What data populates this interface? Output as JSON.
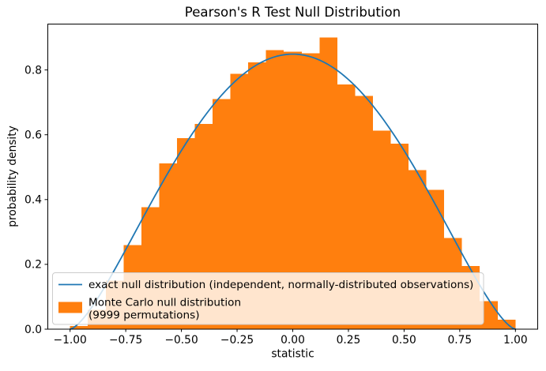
{
  "chart_data": {
    "type": "histogram+line",
    "title": "Pearson's R Test Null Distribution",
    "xlabel": "statistic",
    "ylabel": "probability density",
    "xlim": [
      -1.1,
      1.1
    ],
    "ylim": [
      0,
      0.9416
    ],
    "grid": false,
    "x_ticks": {
      "values": [
        -1.0,
        -0.75,
        -0.5,
        -0.25,
        0.0,
        0.25,
        0.5,
        0.75,
        1.0
      ],
      "labels": [
        "−1.00",
        "−0.75",
        "−0.50",
        "−0.25",
        "0.00",
        "0.25",
        "0.50",
        "0.75",
        "1.00"
      ]
    },
    "y_ticks": {
      "values": [
        0.0,
        0.2,
        0.4,
        0.6,
        0.8
      ],
      "labels": [
        "0.0",
        "0.2",
        "0.4",
        "0.6",
        "0.8"
      ]
    },
    "histogram": {
      "legend_label": "Monte Carlo null distribution\n(9999 permutations)",
      "color": "#ff7f0e",
      "bin_start": -1.0,
      "bin_width": 0.08,
      "bin_centers": [
        -0.96,
        -0.88,
        -0.8,
        -0.72,
        -0.64,
        -0.56,
        -0.48,
        -0.4,
        -0.32,
        -0.24,
        -0.16,
        -0.08,
        0.0,
        0.08,
        0.16,
        0.24,
        0.32,
        0.4,
        0.48,
        0.56,
        0.64,
        0.72,
        0.8,
        0.88,
        0.96
      ],
      "densities": [
        0.01,
        0.06,
        0.15,
        0.26,
        0.377,
        0.511,
        0.589,
        0.633,
        0.71,
        0.788,
        0.824,
        0.861,
        0.856,
        0.851,
        0.9,
        0.755,
        0.72,
        0.613,
        0.573,
        0.491,
        0.43,
        0.281,
        0.195,
        0.086,
        0.029
      ]
    },
    "line": {
      "legend_label": "exact null distribution (independent, normally-distributed observations)",
      "color": "#1f77b4",
      "formula": {
        "description": "pdf(r) = coefficient * (1 - r^2)^exponent on [-1, 1]",
        "coefficient": 0.8488,
        "exponent": 1.5
      },
      "samples": {
        "x": [
          -1.0,
          -0.95,
          -0.9,
          -0.85,
          -0.8,
          -0.75,
          -0.7,
          -0.65,
          -0.6,
          -0.55,
          -0.5,
          -0.45,
          -0.4,
          -0.35,
          -0.3,
          -0.25,
          -0.2,
          -0.15,
          -0.1,
          -0.05,
          0.0,
          0.05,
          0.1,
          0.15,
          0.2,
          0.25,
          0.3,
          0.35,
          0.4,
          0.45,
          0.5,
          0.55,
          0.6,
          0.65,
          0.7,
          0.75,
          0.8,
          0.85,
          0.9,
          0.95,
          1.0
        ],
        "density": [
          0,
          0.0258,
          0.0703,
          0.1241,
          0.1833,
          0.2456,
          0.3092,
          0.3725,
          0.4346,
          0.4944,
          0.5513,
          0.6045,
          0.6535,
          0.6977,
          0.7368,
          0.7705,
          0.7984,
          0.8203,
          0.8361,
          0.8456,
          0.8488,
          0.8456,
          0.8361,
          0.8203,
          0.7984,
          0.7705,
          0.7368,
          0.6977,
          0.6535,
          0.6045,
          0.5513,
          0.4944,
          0.4346,
          0.3725,
          0.3092,
          0.2456,
          0.1833,
          0.1241,
          0.0703,
          0.0258,
          0
        ]
      }
    },
    "legend": {
      "position": "lower left",
      "entries": [
        {
          "type": "line",
          "color": "#1f77b4",
          "label": "exact null distribution (independent, normally-distributed observations)"
        },
        {
          "type": "patch",
          "color": "#ff7f0e",
          "label_lines": [
            "Monte Carlo null distribution",
            "(9999 permutations)"
          ]
        }
      ]
    }
  }
}
